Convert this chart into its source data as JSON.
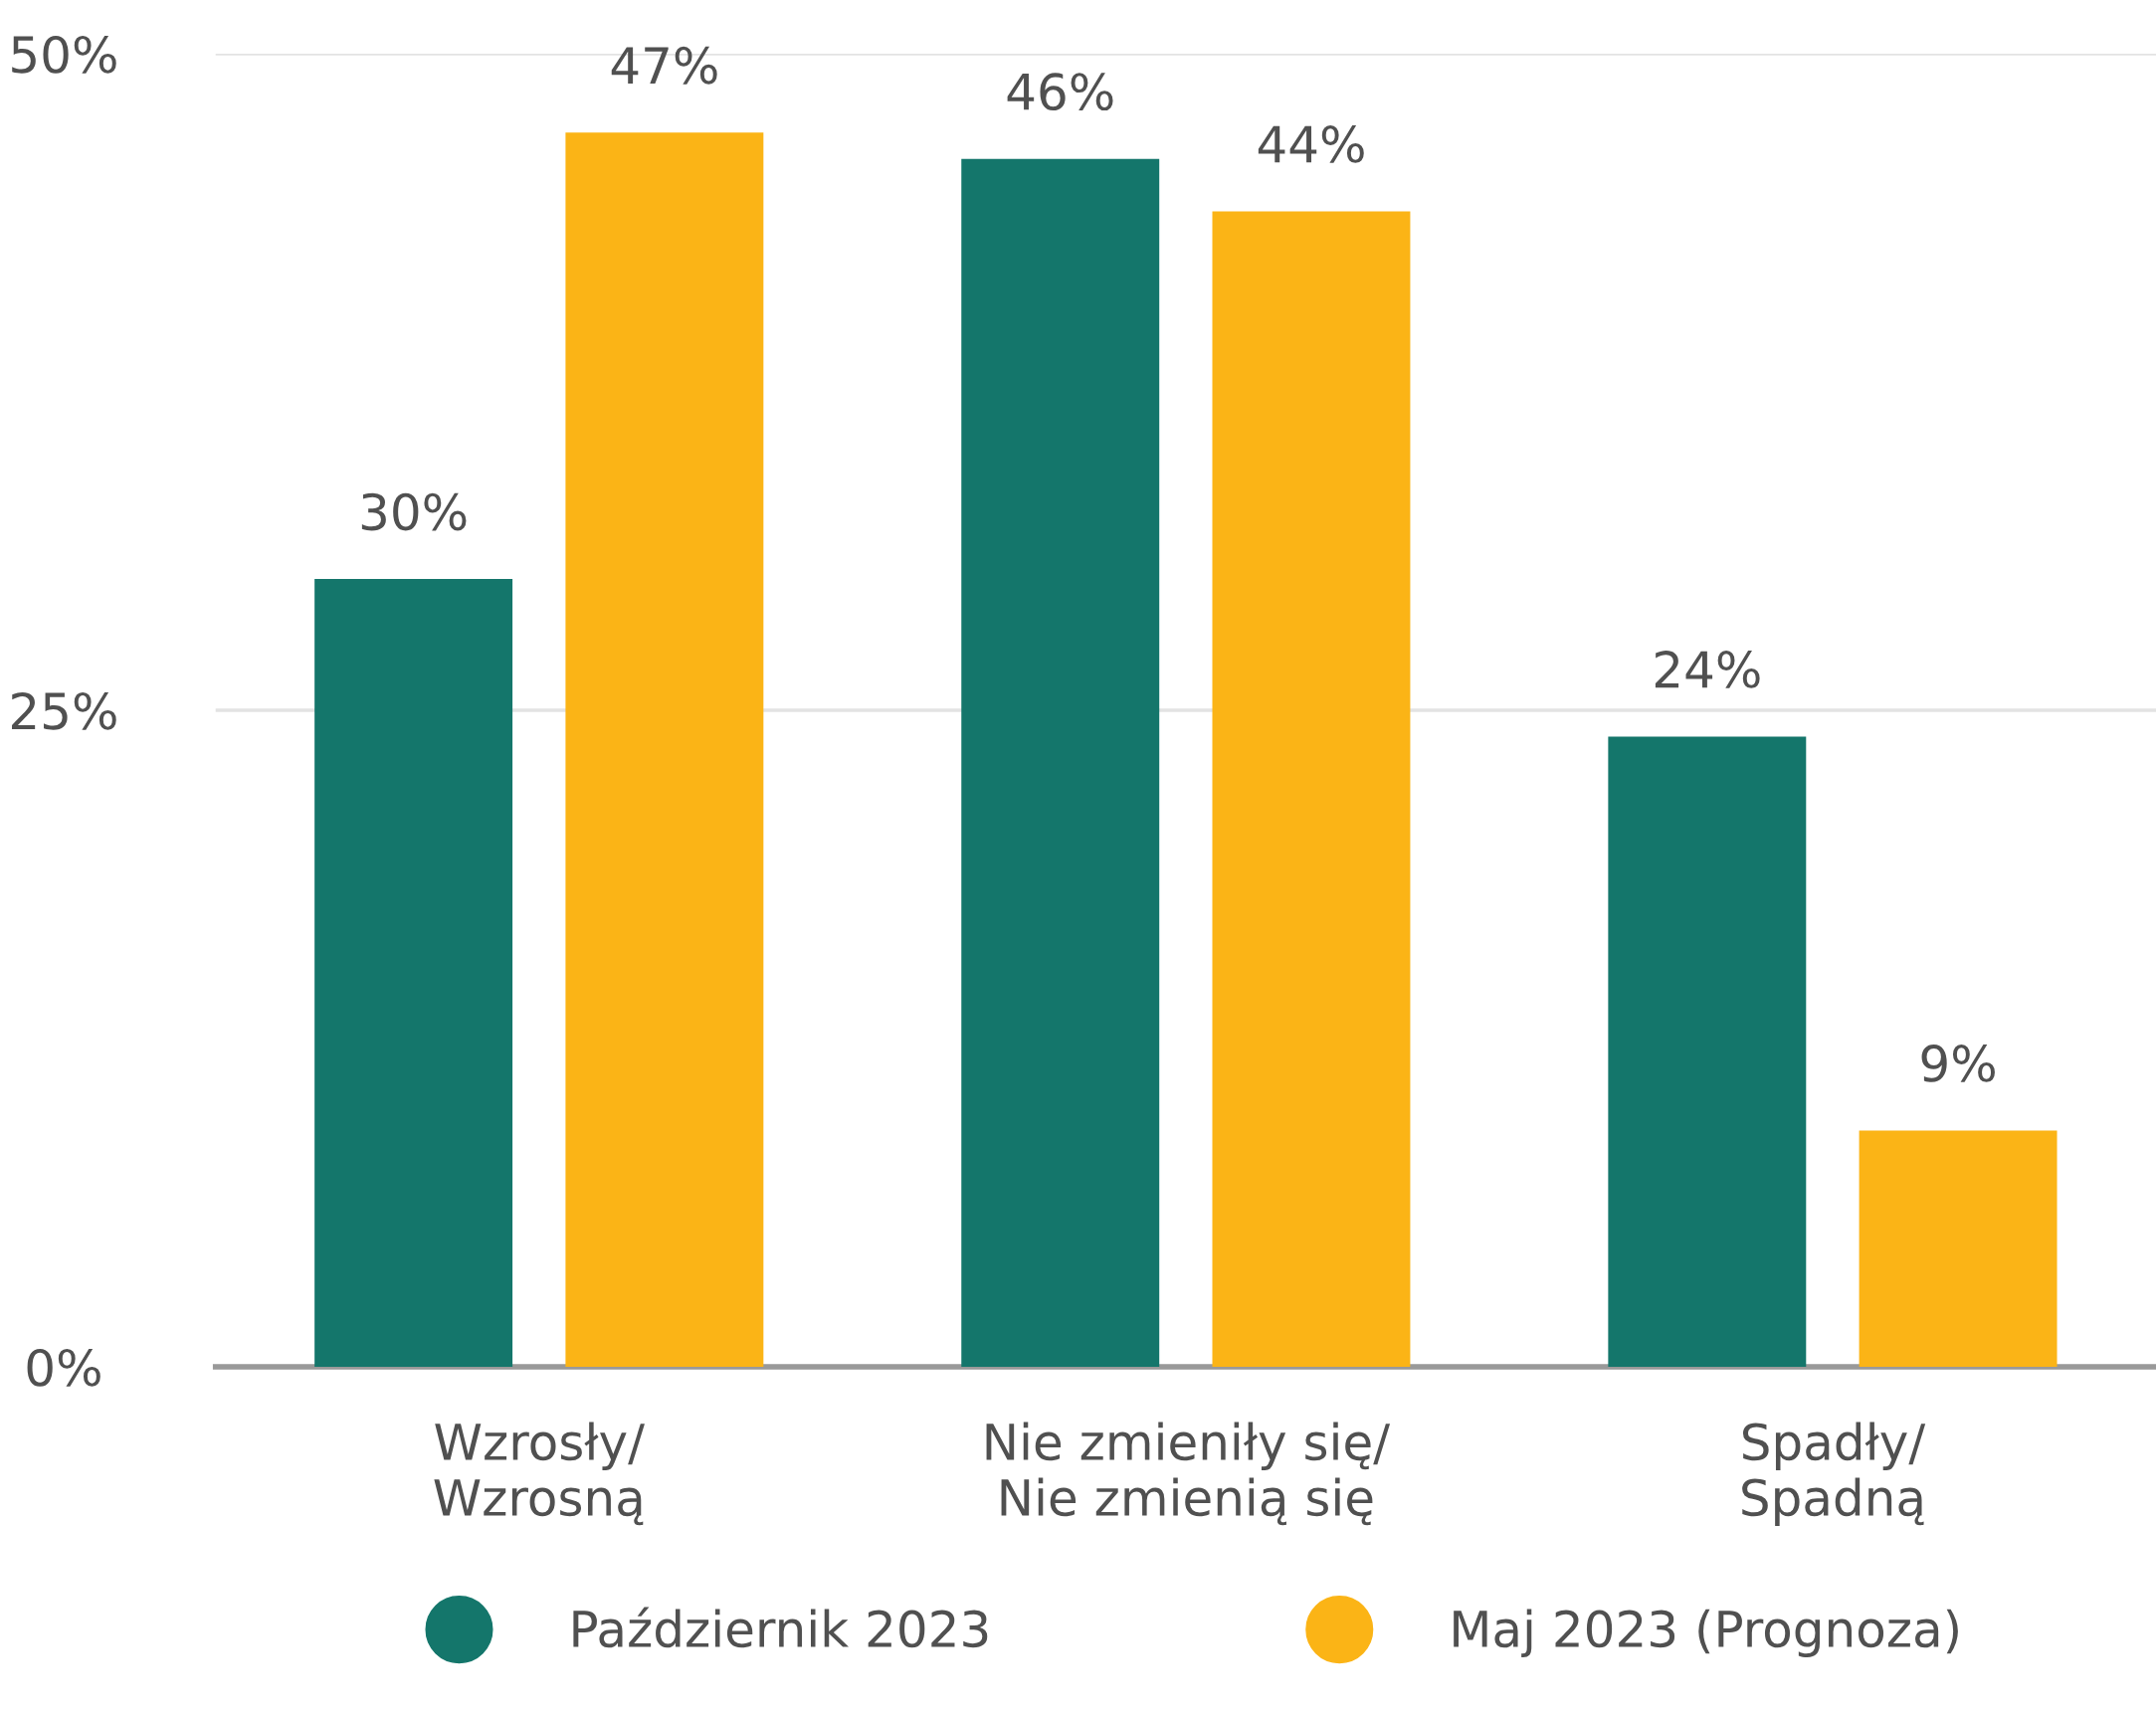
{
  "chart_data": {
    "type": "bar",
    "categories": [
      "Wzrosły/\nWzrosną",
      "Nie zmieniły się/\nNie zmienią się",
      "Spadły/\nSpadną"
    ],
    "series": [
      {
        "name": "Październik 2023",
        "color": "#14766b",
        "values": [
          30,
          46,
          24
        ]
      },
      {
        "name": "Maj 2023 (Prognoza)",
        "color": "#fbb416",
        "values": [
          47,
          44,
          9
        ]
      }
    ],
    "ylim": [
      0,
      50
    ],
    "yticks": [
      {
        "value": 0,
        "label": "0%"
      },
      {
        "value": 25,
        "label": "25%"
      },
      {
        "value": 50,
        "label": "50%"
      }
    ],
    "value_labels": [
      [
        "30%",
        "46%",
        "24%"
      ],
      [
        "47%",
        "44%",
        "9%"
      ]
    ],
    "grid": "y",
    "legend": "bottom",
    "marker": "circle"
  }
}
